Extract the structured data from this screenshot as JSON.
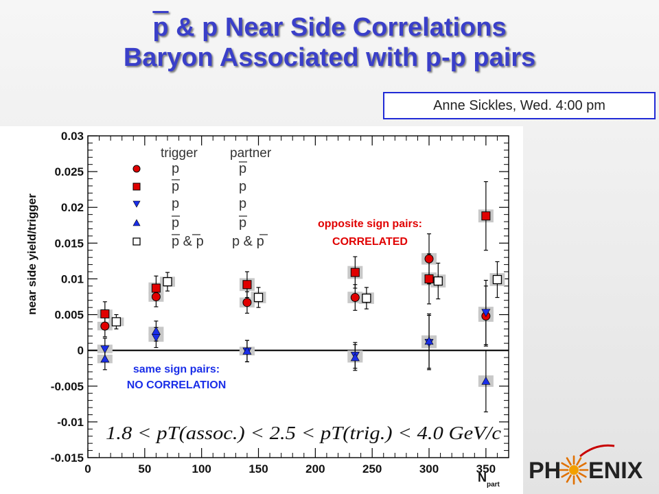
{
  "title": {
    "pbar": "p",
    "line1_rest": " & p Near Side Correlations",
    "line2": "Baryon Associated with p-p pairs"
  },
  "author_box": "Anne Sickles, Wed. 4:00 pm",
  "logo": {
    "left": "PH",
    "right": "ENIX"
  },
  "annotations": {
    "opposite_line1": "opposite sign pairs:",
    "opposite_line2": "CORRELATED",
    "same_line1": "same sign pairs:",
    "same_line2": "NO CORRELATION",
    "formula": "1.8 < pT(assoc.) < 2.5 < pT(trig.) < 4.0 GeV/c"
  },
  "colors": {
    "title": "#3a3fc9",
    "red_marker": "#e00000",
    "blue_marker": "#1a2ee8",
    "opposite_text": "#e00000",
    "same_text": "#1a2ee8",
    "systematic_box": "#c8c8c8"
  },
  "chart_data": {
    "type": "scatter",
    "xlabel": "N",
    "xlabel_sub": "part",
    "ylabel": "near side yield/trigger",
    "xlim": [
      0,
      370
    ],
    "ylim": [
      -0.015,
      0.03
    ],
    "x_ticks": [
      0,
      50,
      100,
      150,
      200,
      250,
      300,
      350
    ],
    "y_ticks": [
      -0.015,
      -0.01,
      -0.005,
      0,
      0.005,
      0.01,
      0.015,
      0.02,
      0.025,
      0.03
    ],
    "y_tick_labels": [
      "-0.015",
      "-0.01",
      "-0.005",
      "0",
      "0.005",
      "0.01",
      "0.015",
      "0.02",
      "0.025",
      "0.03"
    ],
    "legend": {
      "header_trigger": "trigger",
      "header_partner": "partner",
      "placement": "top-left",
      "rows": [
        {
          "marker": "circle",
          "color": "red",
          "trigger": "p",
          "trigger_bar": false,
          "partner": "p",
          "partner_bar": true
        },
        {
          "marker": "square",
          "color": "red",
          "trigger": "p",
          "trigger_bar": true,
          "partner": "p",
          "partner_bar": false
        },
        {
          "marker": "triangle-down",
          "color": "blue",
          "trigger": "p",
          "trigger_bar": false,
          "partner": "p",
          "partner_bar": false
        },
        {
          "marker": "triangle-up",
          "color": "blue",
          "trigger": "p",
          "trigger_bar": true,
          "partner": "p",
          "partner_bar": true
        },
        {
          "marker": "open-square",
          "color": "white",
          "trigger": "p & p",
          "trigger_bar": true,
          "partner": "p & p",
          "partner_bar": true
        }
      ]
    },
    "series": [
      {
        "marker": "circle",
        "color": "red",
        "points": [
          {
            "x": 15,
            "y": 0.0034,
            "err": 0.0015,
            "sys": 0.0006
          },
          {
            "x": 60,
            "y": 0.0075,
            "err": 0.0014,
            "sys": 0.0007
          },
          {
            "x": 140,
            "y": 0.0067,
            "err": 0.0015,
            "sys": 0.0007
          },
          {
            "x": 235,
            "y": 0.0074,
            "err": 0.0018,
            "sys": 0.0008
          },
          {
            "x": 300,
            "y": 0.0128,
            "err": 0.0035,
            "sys": 0.0008
          },
          {
            "x": 350,
            "y": 0.0048,
            "err": 0.0042,
            "sys": 0.0008
          }
        ]
      },
      {
        "marker": "square",
        "color": "red",
        "points": [
          {
            "x": 15,
            "y": 0.0051,
            "err": 0.0017,
            "sys": 0.0006
          },
          {
            "x": 60,
            "y": 0.0087,
            "err": 0.0017,
            "sys": 0.0008
          },
          {
            "x": 140,
            "y": 0.0092,
            "err": 0.0018,
            "sys": 0.0009
          },
          {
            "x": 235,
            "y": 0.0109,
            "err": 0.0022,
            "sys": 0.0009
          },
          {
            "x": 300,
            "y": 0.01,
            "err": 0.0035,
            "sys": 0.0009
          },
          {
            "x": 350,
            "y": 0.0188,
            "err": 0.0048,
            "sys": 0.0009
          }
        ]
      },
      {
        "marker": "triangle-down",
        "color": "blue",
        "points": [
          {
            "x": 15,
            "y": 0.0002,
            "err": 0.0015,
            "sys": 0.0006
          },
          {
            "x": 60,
            "y": 0.0018,
            "err": 0.0014,
            "sys": 0.0006
          },
          {
            "x": 140,
            "y": -0.0001,
            "err": 0.0015,
            "sys": 0.0006
          },
          {
            "x": 235,
            "y": -0.0007,
            "err": 0.0018,
            "sys": 0.0007
          },
          {
            "x": 300,
            "y": 0.0011,
            "err": 0.0038,
            "sys": 0.0008
          },
          {
            "x": 350,
            "y": 0.0053,
            "err": 0.0045,
            "sys": 0.0008
          }
        ]
      },
      {
        "marker": "triangle-up",
        "color": "blue",
        "points": [
          {
            "x": 15,
            "y": -0.0012,
            "err": 0.0015,
            "sys": 0.0006
          },
          {
            "x": 60,
            "y": 0.0027,
            "err": 0.0014,
            "sys": 0.0006
          },
          {
            "x": 140,
            "y": -0.0001,
            "err": 0.0015,
            "sys": 0.0006
          },
          {
            "x": 235,
            "y": -0.001,
            "err": 0.0018,
            "sys": 0.0007
          },
          {
            "x": 300,
            "y": 0.0013,
            "err": 0.0038,
            "sys": 0.0008
          },
          {
            "x": 350,
            "y": -0.0043,
            "err": 0.0043,
            "sys": 0.0008
          }
        ]
      },
      {
        "marker": "open-square",
        "color": "white",
        "points": [
          {
            "x": 25,
            "y": 0.004,
            "err": 0.001,
            "sys": 0.0006
          },
          {
            "x": 70,
            "y": 0.0096,
            "err": 0.0013,
            "sys": 0.0007
          },
          {
            "x": 150,
            "y": 0.0074,
            "err": 0.0014,
            "sys": 0.0008
          },
          {
            "x": 245,
            "y": 0.0073,
            "err": 0.0015,
            "sys": 0.0008
          },
          {
            "x": 308,
            "y": 0.0097,
            "err": 0.0025,
            "sys": 0.0009
          },
          {
            "x": 360,
            "y": 0.0099,
            "err": 0.0025,
            "sys": 0.0009
          }
        ]
      }
    ]
  }
}
